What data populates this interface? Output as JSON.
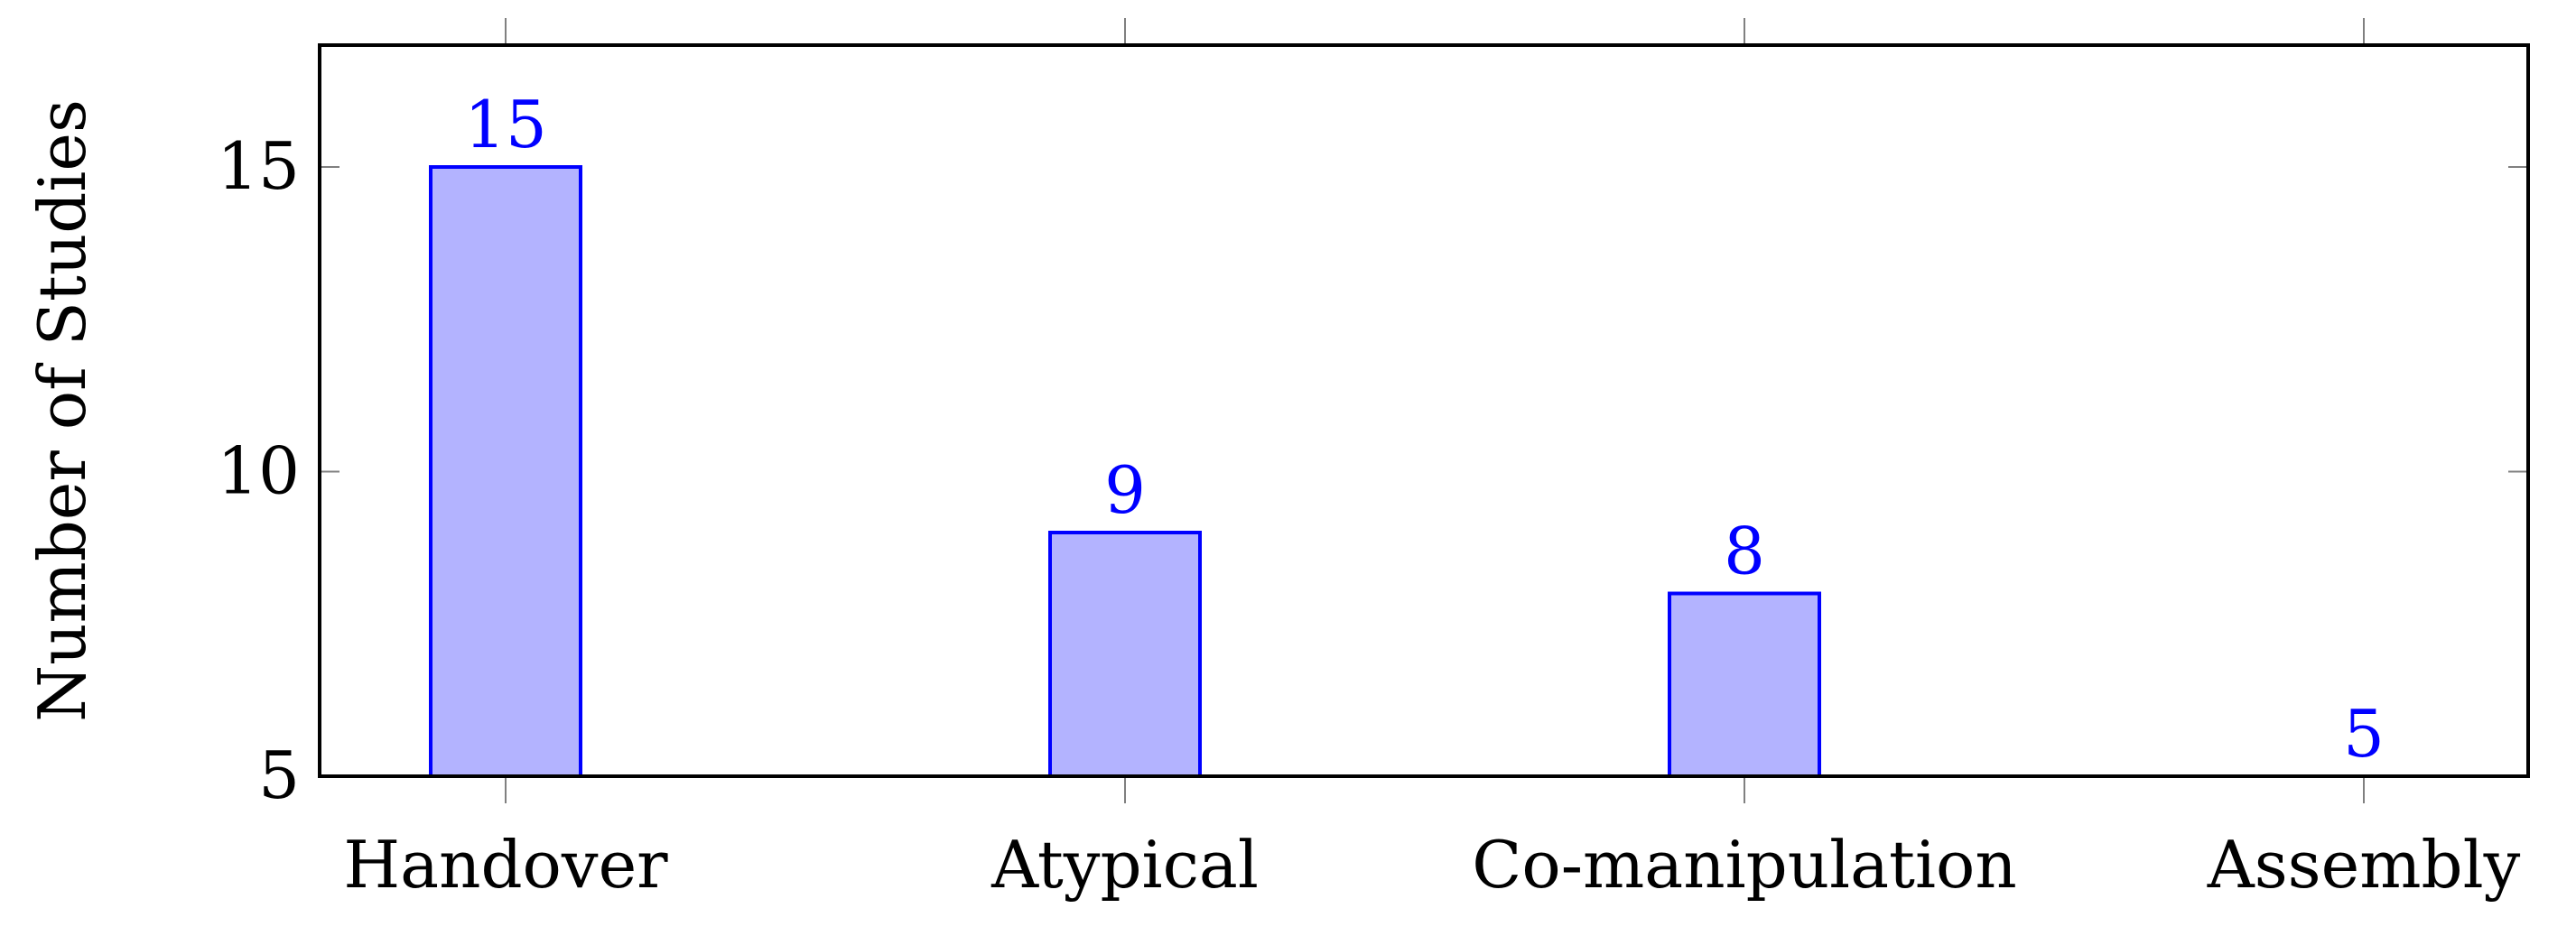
{
  "chart_data": {
    "type": "bar",
    "title": "",
    "xlabel": "",
    "ylabel": "Number of Studies",
    "categories": [
      "Handover",
      "Atypical",
      "Co-manipulation",
      "Assembly"
    ],
    "series": [
      {
        "values": [
          15,
          9,
          8,
          5
        ]
      }
    ],
    "data_labels": [
      "15",
      "9",
      "8",
      "5"
    ],
    "ylim": [
      5,
      17
    ],
    "yticks": [
      5,
      10,
      15
    ],
    "ytick_labels": [
      "5",
      "10",
      "15"
    ],
    "grid": false,
    "legend": "none",
    "colors": {
      "bar_fill": "#b3b3ff",
      "bar_stroke": "#0000ff",
      "label": "#0000ff",
      "axis": "#000000",
      "tick": "#808080"
    }
  }
}
